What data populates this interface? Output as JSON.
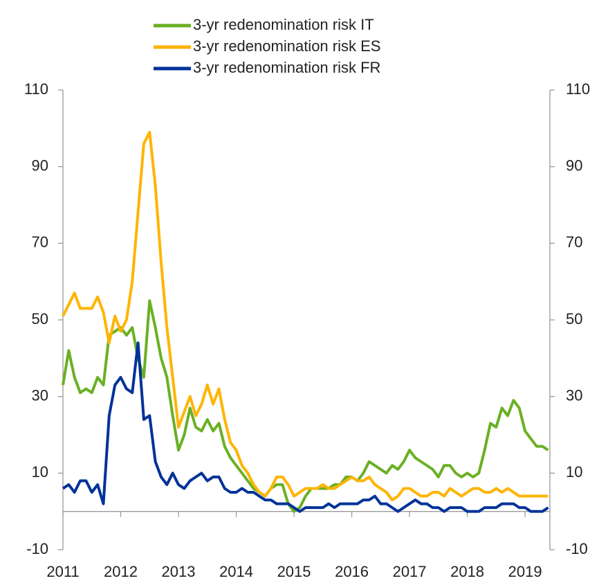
{
  "chart_data": {
    "type": "line",
    "x": [
      2011.0,
      2011.1,
      2011.2,
      2011.3,
      2011.4,
      2011.5,
      2011.6,
      2011.7,
      2011.8,
      2011.9,
      2012.0,
      2012.1,
      2012.2,
      2012.3,
      2012.4,
      2012.5,
      2012.6,
      2012.7,
      2012.8,
      2012.9,
      2013.0,
      2013.1,
      2013.2,
      2013.3,
      2013.4,
      2013.5,
      2013.6,
      2013.7,
      2013.8,
      2013.9,
      2014.0,
      2014.1,
      2014.2,
      2014.3,
      2014.4,
      2014.5,
      2014.6,
      2014.7,
      2014.8,
      2014.9,
      2015.0,
      2015.1,
      2015.2,
      2015.3,
      2015.4,
      2015.5,
      2015.6,
      2015.7,
      2015.8,
      2015.9,
      2016.0,
      2016.1,
      2016.2,
      2016.3,
      2016.4,
      2016.5,
      2016.6,
      2016.7,
      2016.8,
      2016.9,
      2017.0,
      2017.1,
      2017.2,
      2017.3,
      2017.4,
      2017.5,
      2017.6,
      2017.7,
      2017.8,
      2017.9,
      2018.0,
      2018.1,
      2018.2,
      2018.3,
      2018.4,
      2018.5,
      2018.6,
      2018.7,
      2018.8,
      2018.9,
      2019.0,
      2019.1,
      2019.2,
      2019.3,
      2019.4
    ],
    "series": [
      {
        "name": "3-yr redenomination risk IT",
        "color": "#6ab023",
        "values": [
          33,
          42,
          35,
          31,
          32,
          31,
          35,
          33,
          46,
          47,
          48,
          46,
          48,
          40,
          35,
          55,
          48,
          40,
          35,
          25,
          16,
          20,
          27,
          22,
          21,
          24,
          21,
          23,
          17,
          14,
          12,
          10,
          8,
          6,
          5,
          4,
          6,
          7,
          7,
          2,
          0,
          1,
          4,
          6,
          6,
          6,
          6,
          7,
          7,
          9,
          9,
          8,
          10,
          13,
          12,
          11,
          10,
          12,
          11,
          13,
          16,
          14,
          13,
          12,
          11,
          9,
          12,
          12,
          10,
          9,
          10,
          9,
          10,
          16,
          23,
          22,
          27,
          25,
          29,
          27,
          21,
          19,
          17,
          17,
          16
        ]
      },
      {
        "name": "3-yr redenomination risk ES",
        "color": "#ffb400",
        "values": [
          51,
          54,
          57,
          53,
          53,
          53,
          56,
          52,
          44,
          51,
          47,
          50,
          60,
          78,
          96,
          99,
          85,
          65,
          48,
          35,
          22,
          26,
          30,
          25,
          28,
          33,
          28,
          32,
          24,
          18,
          16,
          12,
          10,
          7,
          5,
          4,
          6,
          9,
          9,
          7,
          4,
          5,
          6,
          6,
          6,
          7,
          6,
          6,
          7,
          8,
          9,
          8,
          8,
          9,
          7,
          6,
          5,
          3,
          4,
          6,
          6,
          5,
          4,
          4,
          5,
          5,
          4,
          6,
          5,
          4,
          5,
          6,
          6,
          5,
          5,
          6,
          5,
          6,
          5,
          4,
          4,
          4,
          4,
          4,
          4
        ]
      },
      {
        "name": "3-yr redenomination risk FR",
        "color": "#003299",
        "values": [
          6,
          7,
          5,
          8,
          8,
          5,
          7,
          2,
          25,
          33,
          35,
          32,
          31,
          44,
          24,
          25,
          13,
          9,
          7,
          10,
          7,
          6,
          8,
          9,
          10,
          8,
          9,
          9,
          6,
          5,
          5,
          6,
          5,
          5,
          4,
          3,
          3,
          2,
          2,
          2,
          1,
          0,
          1,
          1,
          1,
          1,
          2,
          1,
          2,
          2,
          2,
          2,
          3,
          3,
          4,
          2,
          2,
          1,
          0,
          1,
          2,
          3,
          2,
          2,
          1,
          1,
          0,
          1,
          1,
          1,
          0,
          0,
          0,
          1,
          1,
          1,
          2,
          2,
          2,
          1,
          1,
          0,
          0,
          0,
          1
        ]
      }
    ],
    "xlim": [
      2011,
      2019.43
    ],
    "xticks": [
      2011,
      2012,
      2013,
      2014,
      2015,
      2016,
      2017,
      2018,
      2019
    ],
    "ylim": [
      -10,
      110
    ],
    "yticks": [
      110,
      90,
      70,
      50,
      30,
      10,
      -10
    ],
    "y2lim": [
      -10,
      110
    ],
    "y2ticks": [
      110,
      90,
      70,
      50,
      30,
      10,
      -10
    ],
    "grid": false,
    "legend": "top"
  }
}
